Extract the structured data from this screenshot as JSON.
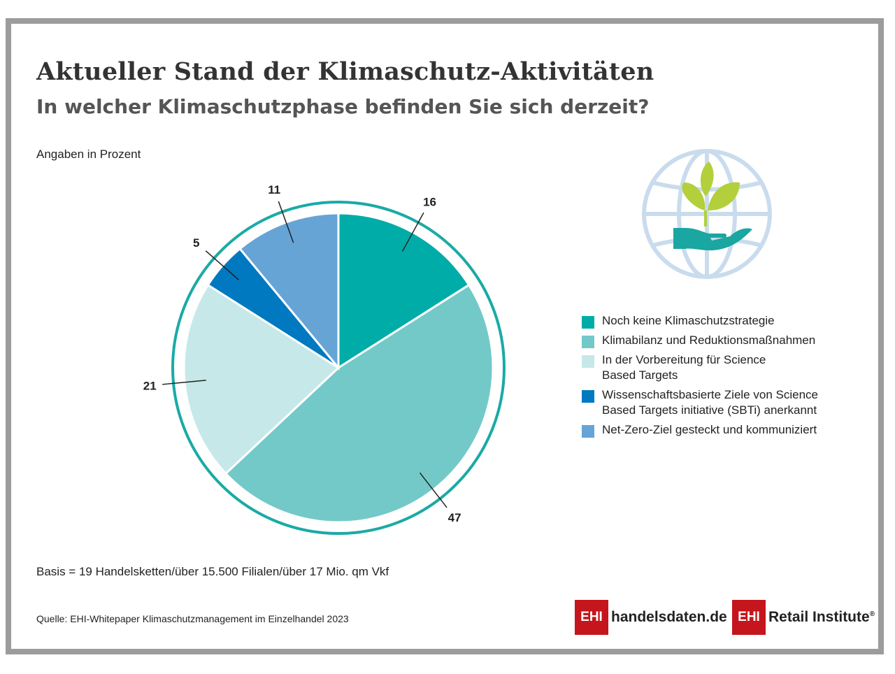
{
  "header": {
    "title": "Aktueller Stand der Klimaschutz-Aktivitäten",
    "subtitle": "In welcher Klimaschutzphase befinden Sie sich derzeit?",
    "unit_note": "Angaben in Prozent"
  },
  "chart_data": {
    "type": "pie",
    "categories": [
      "Noch keine Klimaschutzstrategie",
      "Klimabilanz und Reduktionsmaßnahmen",
      "In der Vorbereitung für Science Based Targets",
      "Wissenschaftsbasierte Ziele von Science Based Targets initiative (SBTi) anerkannt",
      "Net-Zero-Ziel gesteckt und kommuniziert"
    ],
    "values": [
      16,
      47,
      21,
      5,
      11
    ],
    "colors": [
      "#00aca8",
      "#73c9c8",
      "#c6e8e8",
      "#0079c1",
      "#66a4d6"
    ],
    "ring_color": "#1aaaa6",
    "legend_position": "right"
  },
  "legend": {
    "items": [
      {
        "label_line1": "Noch keine Klimaschutzstrategie",
        "label_line2": ""
      },
      {
        "label_line1": "Klimabilanz und Reduktionsmaßnahmen",
        "label_line2": ""
      },
      {
        "label_line1": "In der Vorbereitung für Science",
        "label_line2": "Based Targets"
      },
      {
        "label_line1": "Wissenschaftsbasierte Ziele von Science",
        "label_line2": "Based Targets initiative (SBTi) anerkannt"
      },
      {
        "label_line1": "Net-Zero-Ziel gesteckt und kommuniziert",
        "label_line2": ""
      }
    ]
  },
  "footer": {
    "basis": "Basis = 19 Handelsketten/über 15.500 Filialen/über 17 Mio. qm Vkf",
    "source": "Quelle: EHI-Whitepaper Klimaschutzmanagement im Einzelhandel 2023",
    "logo1_box": "EHI",
    "logo1_text": "handelsdaten.de",
    "logo2_box": "EHI",
    "logo2_text": "Retail Institute",
    "logo2_mark": "®"
  },
  "icons": {
    "illustration": "globe-hand-leaves-icon"
  }
}
